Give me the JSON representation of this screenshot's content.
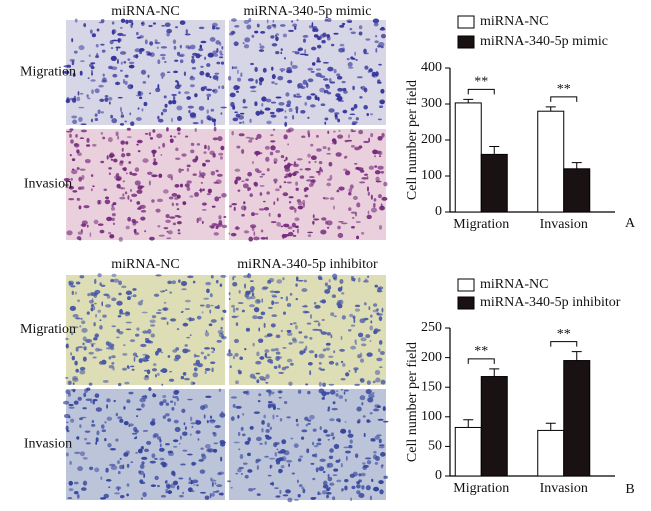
{
  "panels": [
    {
      "columns": [
        "miRNA-NC",
        "miRNA-340-5p mimic"
      ],
      "rows": [
        "Migration",
        "Invasion"
      ],
      "label": "A"
    },
    {
      "columns": [
        "miRNA-NC",
        "miRNA-340-5p inhibitor"
      ],
      "rows": [
        "Migration",
        "Invasion"
      ],
      "label": "B"
    }
  ],
  "chart_data": [
    {
      "type": "bar",
      "y_label": "Cell number per field",
      "categories": [
        "Migration",
        "Invasion"
      ],
      "series": [
        {
          "name": "miRNA-NC",
          "color": "#ffffff",
          "values": [
            303,
            280
          ],
          "errors": [
            10,
            12
          ]
        },
        {
          "name": "miRNA-340-5p mimic",
          "color": "#1a1212",
          "values": [
            160,
            120
          ],
          "errors": [
            22,
            17
          ]
        }
      ],
      "annotations": [
        "**",
        "**"
      ],
      "ylim": [
        0,
        400
      ],
      "yticks": [
        0,
        100,
        200,
        300,
        400
      ]
    },
    {
      "type": "bar",
      "y_label": "Cell number per field",
      "categories": [
        "Migration",
        "Invasion"
      ],
      "series": [
        {
          "name": "miRNA-NC",
          "color": "#ffffff",
          "values": [
            82,
            77
          ],
          "errors": [
            13,
            12
          ]
        },
        {
          "name": "miRNA-340-5p inhibitor",
          "color": "#1a1212",
          "values": [
            168,
            195
          ],
          "errors": [
            13,
            15
          ]
        }
      ],
      "annotations": [
        "**",
        "**"
      ],
      "ylim": [
        0,
        250
      ],
      "yticks": [
        0,
        50,
        100,
        150,
        200,
        250
      ]
    }
  ]
}
